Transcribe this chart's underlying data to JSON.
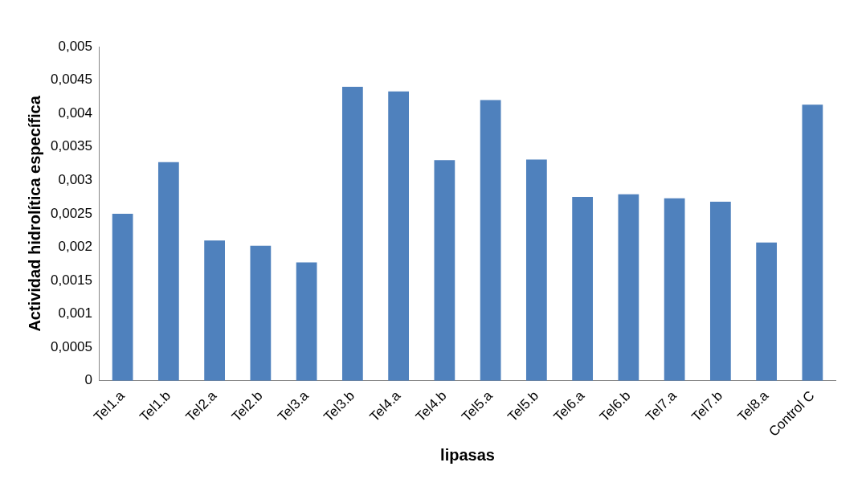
{
  "chart_data": {
    "type": "bar",
    "xlabel": "lipasas",
    "ylabel": "Actividad hidrolítica específica",
    "categories": [
      "Tel1.a",
      "Tel1.b",
      "Tel2.a",
      "Tel2.b",
      "Tel3.a",
      "Tel3.b",
      "Tel4.a",
      "Tel4.b",
      "Tel5.a",
      "Tel5.b",
      "Tel6.a",
      "Tel6.b",
      "Tel7.a",
      "Tel7.b",
      "Tel8.a",
      "Control C"
    ],
    "values": [
      0.0025,
      0.00327,
      0.0021,
      0.00202,
      0.00177,
      0.0044,
      0.00433,
      0.0033,
      0.0042,
      0.00331,
      0.00275,
      0.00279,
      0.00273,
      0.00268,
      0.00207,
      0.00413
    ],
    "color": "#4f81bd",
    "ylim": [
      0,
      0.005
    ],
    "yticks": [
      0,
      {
        "value": 0.0005,
        "label": "0,0005"
      },
      {
        "value": 0.001,
        "label": "0,001"
      },
      {
        "value": 0.0015,
        "label": "0,0015"
      },
      {
        "value": 0.002,
        "label": "0,002"
      },
      {
        "value": 0.0025,
        "label": "0,0025"
      },
      {
        "value": 0.003,
        "label": "0,003"
      },
      {
        "value": 0.0035,
        "label": "0,0035"
      },
      {
        "value": 0.004,
        "label": "0,004"
      },
      {
        "value": 0.0045,
        "label": "0,0045"
      },
      {
        "value": 0.005,
        "label": "0,005"
      }
    ],
    "grid": false,
    "legend": false
  }
}
